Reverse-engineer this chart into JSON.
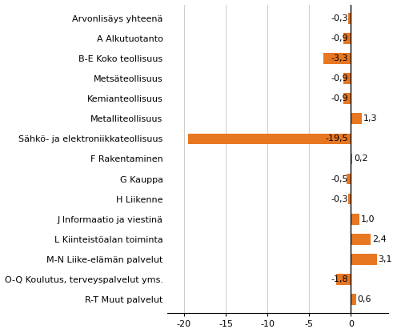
{
  "categories": [
    "Arvonlisäys yhteenä",
    "A Alkutuotanto",
    "B-E Koko teollisuus",
    "Metsäteollisuus",
    "Kemianteollisuus",
    "Metalliteollisuus",
    "Sähkö- ja elektroniikkateollisuus",
    "F Rakentaminen",
    "G Kauppa",
    "H Liikenne",
    "J Informaatio ja viestinä",
    "L Kiinteistöalan toiminta",
    "M-N Liike-elämän palvelut",
    "O-Q Koulutus, terveyspalvelut yms.",
    "R-T Muut palvelut"
  ],
  "values": [
    -0.3,
    -0.9,
    -3.3,
    -0.9,
    -0.9,
    1.3,
    -19.5,
    0.2,
    -0.5,
    -0.3,
    1.0,
    2.4,
    3.1,
    -1.8,
    0.6
  ],
  "bar_color": "#E87722",
  "label_color": "#000000",
  "background_color": "#ffffff",
  "xlim": [
    -22,
    4.5
  ],
  "xticks": [
    -20,
    -15,
    -10,
    -5,
    0
  ],
  "grid_color": "#cccccc",
  "bar_height": 0.55,
  "fontsize_labels": 8.0,
  "fontsize_values": 8.0
}
